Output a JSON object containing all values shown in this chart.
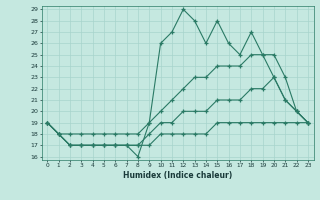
{
  "title": "",
  "xlabel": "Humidex (Indice chaleur)",
  "x": [
    0,
    1,
    2,
    3,
    4,
    5,
    6,
    7,
    8,
    9,
    10,
    11,
    12,
    13,
    14,
    15,
    16,
    17,
    18,
    19,
    20,
    21,
    22,
    23
  ],
  "line1": [
    19,
    18,
    17,
    17,
    17,
    17,
    17,
    17,
    16,
    19,
    26,
    27,
    29,
    28,
    26,
    28,
    26,
    25,
    27,
    25,
    23,
    21,
    20,
    19
  ],
  "line2": [
    19,
    18,
    18,
    18,
    18,
    18,
    18,
    18,
    18,
    19,
    20,
    21,
    22,
    23,
    23,
    24,
    24,
    24,
    25,
    25,
    25,
    23,
    20,
    19
  ],
  "line3": [
    19,
    18,
    17,
    17,
    17,
    17,
    17,
    17,
    17,
    18,
    19,
    19,
    20,
    20,
    20,
    21,
    21,
    21,
    22,
    22,
    23,
    21,
    20,
    19
  ],
  "line4": [
    19,
    18,
    17,
    17,
    17,
    17,
    17,
    17,
    17,
    17,
    18,
    18,
    18,
    18,
    18,
    19,
    19,
    19,
    19,
    19,
    19,
    19,
    19,
    19
  ],
  "ylim_min": 16,
  "ylim_max": 29,
  "yticks": [
    16,
    17,
    18,
    19,
    20,
    21,
    22,
    23,
    24,
    25,
    26,
    27,
    28,
    29
  ],
  "line_color": "#2a7a65",
  "bg_color": "#c5e8e0",
  "grid_color": "#a8d4cc"
}
